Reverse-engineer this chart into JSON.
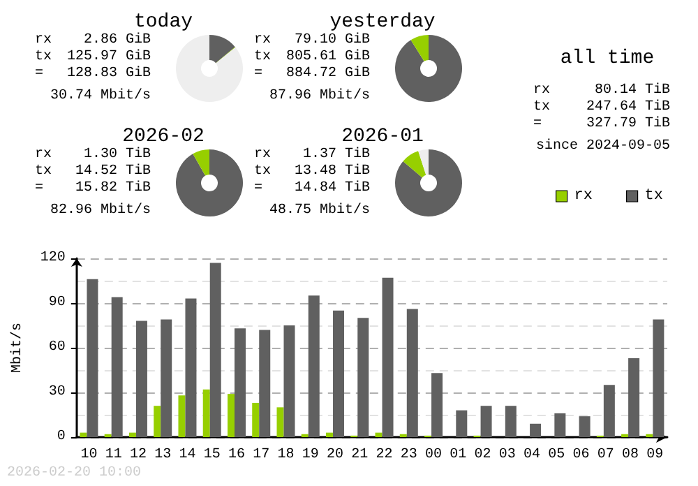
{
  "chart_data": [
    {
      "type": "donut",
      "title": "today",
      "categories": [
        null,
        null,
        null
      ],
      "values": [
        13.9,
        0.3,
        85.8
      ],
      "colors": [
        "#606060",
        "#97cf00",
        "#eeeeee"
      ],
      "annotations": [
        "rx",
        "2.86 GiB",
        "tx",
        "125.97 GiB",
        "=",
        "128.83 GiB",
        "30.74 Mbit/s"
      ]
    },
    {
      "type": "donut",
      "title": "yesterday",
      "categories": [
        null,
        null
      ],
      "values": [
        91.1,
        8.9
      ],
      "colors": [
        "#606060",
        "#97cf00"
      ],
      "annotations": [
        "rx",
        "79.10 GiB",
        "tx",
        "805.61 GiB",
        "=",
        "884.72 GiB",
        "87.96 Mbit/s"
      ]
    },
    {
      "type": "other",
      "title": "all time",
      "annotations": [
        "rx",
        "80.14 TiB",
        "tx",
        "247.64 TiB",
        "=",
        "327.79 TiB",
        "since 2024-09-05"
      ]
    },
    {
      "type": "donut",
      "title": "2026-02",
      "categories": [
        null,
        null
      ],
      "values": [
        91.8,
        8.2
      ],
      "colors": [
        "#606060",
        "#97cf00"
      ],
      "annotations": [
        "rx",
        "1.30 TiB",
        "tx",
        "14.52 TiB",
        "=",
        "15.82 TiB",
        "82.96 Mbit/s"
      ]
    },
    {
      "type": "donut",
      "title": "2026-01",
      "categories": [
        null,
        null,
        null
      ],
      "values": [
        86.2,
        8.8,
        5.0
      ],
      "colors": [
        "#606060",
        "#97cf00",
        "#eeeeee"
      ],
      "annotations": [
        "rx",
        "1.37 TiB",
        "tx",
        "13.48 TiB",
        "=",
        "14.84 TiB",
        "48.75 Mbit/s"
      ]
    },
    {
      "type": "bar",
      "ylabel": "Mbit/s",
      "categories": [
        "10",
        "11",
        "12",
        "13",
        "14",
        "15",
        "16",
        "17",
        "18",
        "19",
        "20",
        "21",
        "22",
        "23",
        "00",
        "01",
        "02",
        "03",
        "04",
        "05",
        "06",
        "07",
        "08",
        "09"
      ],
      "series": [
        {
          "name": "rx",
          "color": "#97cf00",
          "values": [
            3,
            2,
            3,
            21,
            28,
            32,
            29,
            23,
            20,
            2,
            3,
            1,
            3,
            2,
            1,
            0,
            1,
            0,
            0,
            0,
            0,
            1,
            2,
            2
          ]
        },
        {
          "name": "tx",
          "color": "#606060",
          "values": [
            106,
            94,
            78,
            79,
            93,
            117,
            73,
            72,
            75,
            95,
            85,
            80,
            107,
            86,
            43,
            18,
            21,
            21,
            9,
            16,
            14,
            35,
            53,
            79
          ]
        }
      ],
      "ylim": [
        0,
        120
      ],
      "yticks": [
        0,
        30,
        60,
        90,
        120
      ],
      "grid": "y",
      "legend": "top right",
      "annotations": [
        "2026-02-20 10:00"
      ]
    }
  ]
}
